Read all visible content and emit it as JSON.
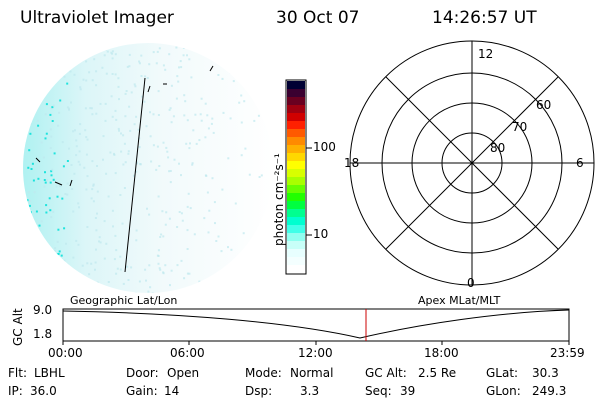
{
  "header": {
    "instrument": "Ultraviolet Imager",
    "date": "30 Oct 07",
    "time": "14:26:57 UT"
  },
  "colorbar": {
    "units_label": "photon cm⁻²s⁻¹",
    "tick_labels": [
      "100",
      "10"
    ],
    "colors": [
      "#000033",
      "#3a0030",
      "#6a0020",
      "#a00010",
      "#d00000",
      "#ff2000",
      "#ff5a00",
      "#ff8a00",
      "#ffb000",
      "#ffd800",
      "#ffff00",
      "#d8ff00",
      "#a8ff00",
      "#66ff00",
      "#22ff00",
      "#00ff40",
      "#00ff90",
      "#00ffd0",
      "#40ffe8",
      "#90fff0",
      "#c8fff8",
      "#e8ffff",
      "#f4ffff",
      "#ffffff"
    ]
  },
  "polar": {
    "mlt_labels": {
      "top": "12",
      "left": "18",
      "right": "6",
      "bottom": "0"
    },
    "lat_labels": [
      "60",
      "70",
      "80"
    ]
  },
  "orbit": {
    "y_axis_label": "GC Alt",
    "y_ticks": [
      "9.0",
      "1.8"
    ],
    "left_title": "Geographic Lat/Lon",
    "right_title": "Apex MLat/MLT",
    "x_ticks": [
      "00:00",
      "06:00",
      "12:00",
      "18:00",
      "23:59"
    ]
  },
  "status": {
    "flt_label": "Flt:",
    "flt_value": "LBHL",
    "ip_label": "IP:",
    "ip_value": "36.0",
    "door_label": "Door:",
    "door_value": "Open",
    "gain_label": "Gain:",
    "gain_value": "14",
    "mode_label": "Mode:",
    "mode_value": "Normal",
    "dsp_label": "Dsp:",
    "dsp_value": "3.3",
    "gcalt_label": "GC Alt:",
    "gcalt_value": "2.5 Re",
    "seq_label": "Seq:",
    "seq_value": "39",
    "glat_label": "GLat:",
    "glat_value": "30.3",
    "glon_label": "GLon:",
    "glon_value": "249.3"
  },
  "colors": {
    "image_cyan": "#00e0d8",
    "image_pale": "#bfe8ee",
    "cursor_red": "#cc0000"
  }
}
